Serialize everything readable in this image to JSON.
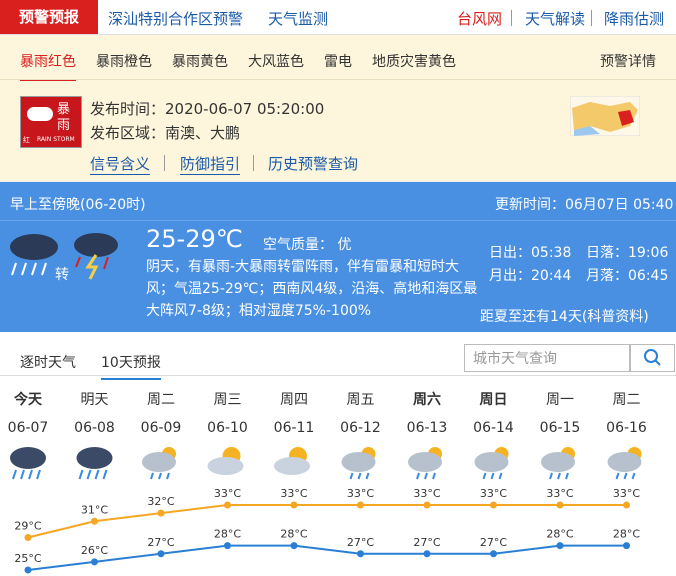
{
  "nav": {
    "tabs": [
      "预警预报",
      "深汕特别合作区预警",
      "天气监测"
    ],
    "links": [
      "台风网",
      "天气解读",
      "降雨估测"
    ]
  },
  "warning_tabs": {
    "items": [
      "暴雨红色",
      "暴雨橙色",
      "暴雨黄色",
      "大风蓝色",
      "雷电",
      "地质灾害黄色"
    ],
    "detail": "预警详情"
  },
  "warning": {
    "icon": {
      "title_1": "暴",
      "title_2": "雨",
      "level": "红",
      "en": "RAIN STORM"
    },
    "time": "发布时间：2020-06-07 05:20:00",
    "area": "发布区域：南澳、大鹏",
    "links": [
      "信号含义",
      "防御指引",
      "历史预警查询"
    ]
  },
  "today": {
    "period": "早上至傍晚(06-20时)",
    "updated": "更新时间：06月07日 05:40",
    "turn": "转",
    "temp": "25-29℃",
    "air": "空气质量： 优",
    "description": "阴天，有暴雨-大暴雨转雷阵雨，伴有雷暴和短时大风；气温25-29℃；西南风4级，沿海、高地和海区最大阵风7-8级；相对湿度75%-100%",
    "sunrise": "日出：05:38",
    "sunset": "日落：19:06",
    "moonrise": "月出：20:44",
    "moonset": "月落：06:45",
    "solar_term": "距夏至还有14天(科普资料)"
  },
  "forecast_tabs": [
    "逐时天气",
    "10天预报"
  ],
  "search_placeholder": "城市天气查询",
  "forecast": {
    "days": [
      "今天",
      "明天",
      "周二",
      "周三",
      "周四",
      "周五",
      "周六",
      "周日",
      "周一",
      "周二"
    ],
    "dates": [
      "06-07",
      "06-08",
      "06-09",
      "06-10",
      "06-11",
      "06-12",
      "06-13",
      "06-14",
      "06-15",
      "06-16"
    ],
    "high": {
      "color": "#f5a623",
      "values": [
        29,
        31,
        32,
        33,
        33,
        33,
        33,
        33,
        33,
        33
      ],
      "value_labels": [
        "29°C",
        "31°C",
        "32°C",
        "33°C",
        "33°C",
        "33°C",
        "33°C",
        "33°C",
        "33°C",
        "33°C"
      ]
    },
    "low": {
      "color": "#2a7fd4",
      "values": [
        25,
        26,
        27,
        28,
        28,
        27,
        27,
        27,
        28,
        28
      ],
      "value_labels": [
        "25°C",
        "26°C",
        "27°C",
        "28°C",
        "28°C",
        "27°C",
        "27°C",
        "27°C",
        "28°C",
        "28°C"
      ]
    }
  }
}
